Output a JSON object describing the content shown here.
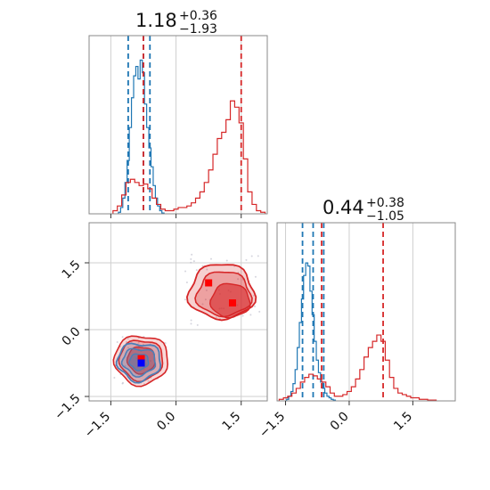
{
  "colors": {
    "blue": "#1f77b4",
    "red": "#d62728",
    "blue_fill": "#4a7fb8",
    "red_fill": "#d62728",
    "grid": "#cfcfcf",
    "scatter": "#b9b9c8",
    "truth_point_a": "#0000ff",
    "truth_point_b": "#ff0000"
  },
  "titles": {
    "param1": {
      "median": "1.18",
      "plus": "+0.36",
      "minus": "−1.93"
    },
    "param2": {
      "median": "0.44",
      "plus": "+0.38",
      "minus": "−1.05"
    }
  },
  "axes": {
    "x1_range": [
      -2.0,
      2.1
    ],
    "x2_range": [
      -1.7,
      2.5
    ],
    "x1_ticks": [
      {
        "value": -1.5,
        "label": "−1.5"
      },
      {
        "value": 0.0,
        "label": "0.0"
      },
      {
        "value": 1.5,
        "label": "1.5"
      }
    ],
    "x2_ticks": [
      {
        "value": -1.5,
        "label": "−1.5"
      },
      {
        "value": 0.0,
        "label": "0.0"
      },
      {
        "value": 1.5,
        "label": "1.5"
      }
    ],
    "y2_range": [
      -1.6,
      2.4
    ],
    "y2_ticks": [
      {
        "value": -1.5,
        "label": "−1.5"
      },
      {
        "value": 0.0,
        "label": "0.0"
      },
      {
        "value": 1.5,
        "label": "1.5"
      }
    ],
    "grid": true
  },
  "chart_data": {
    "type": "corner",
    "series": [
      {
        "name": "",
        "color": "#1f77b4",
        "param1": {
          "x": [
            -1.3,
            -1.25,
            -1.2,
            -1.15,
            -1.1,
            -1.05,
            -1.0,
            -0.95,
            -0.9,
            -0.85,
            -0.8,
            -0.75,
            -0.7,
            -0.65,
            -0.6,
            -0.55,
            -0.5,
            -0.45,
            -0.4,
            -0.35,
            -0.3
          ],
          "counts": [
            0.01,
            0.04,
            0.1,
            0.2,
            0.34,
            0.55,
            0.74,
            0.88,
            0.94,
            0.86,
            0.98,
            0.9,
            0.7,
            0.55,
            0.42,
            0.3,
            0.18,
            0.1,
            0.05,
            0.02,
            0.005
          ],
          "quantiles": [
            -1.1,
            -0.75,
            -0.6
          ]
        },
        "param2": {
          "x": [
            -1.45,
            -1.4,
            -1.35,
            -1.3,
            -1.25,
            -1.2,
            -1.15,
            -1.1,
            -1.05,
            -1.0,
            -0.95,
            -0.9,
            -0.85,
            -0.8,
            -0.75,
            -0.7,
            -0.65,
            -0.6,
            -0.55,
            -0.5,
            -0.45,
            -0.4,
            -0.35
          ],
          "counts": [
            0.01,
            0.03,
            0.06,
            0.11,
            0.2,
            0.34,
            0.5,
            0.65,
            0.8,
            0.88,
            0.86,
            0.7,
            0.55,
            0.38,
            0.26,
            0.18,
            0.12,
            0.08,
            0.05,
            0.03,
            0.02,
            0.01,
            0.005
          ],
          "quantiles": [
            -1.1,
            -0.85,
            -0.6
          ]
        },
        "mode_2d": {
          "x": -0.8,
          "y": -0.75
        }
      },
      {
        "name": "",
        "color": "#d62728",
        "param1": {
          "x": [
            -1.4,
            -1.3,
            -1.2,
            -1.1,
            -1.0,
            -0.9,
            -0.8,
            -0.7,
            -0.6,
            -0.5,
            -0.4,
            -0.3,
            -0.2,
            -0.1,
            0.0,
            0.1,
            0.2,
            0.3,
            0.4,
            0.5,
            0.6,
            0.7,
            0.8,
            0.9,
            1.0,
            1.1,
            1.2,
            1.3,
            1.4,
            1.5,
            1.6,
            1.7,
            1.8,
            1.9,
            2.0
          ],
          "counts": [
            0.02,
            0.05,
            0.12,
            0.2,
            0.22,
            0.2,
            0.18,
            0.19,
            0.16,
            0.1,
            0.06,
            0.03,
            0.02,
            0.02,
            0.03,
            0.04,
            0.04,
            0.05,
            0.07,
            0.1,
            0.14,
            0.2,
            0.28,
            0.38,
            0.48,
            0.52,
            0.6,
            0.72,
            0.68,
            0.58,
            0.35,
            0.14,
            0.06,
            0.02,
            0.01
          ],
          "quantiles": [
            -0.75,
            1.5
          ]
        },
        "param2": {
          "x": [
            -1.6,
            -1.5,
            -1.4,
            -1.3,
            -1.2,
            -1.1,
            -1.0,
            -0.9,
            -0.8,
            -0.7,
            -0.6,
            -0.5,
            -0.4,
            -0.3,
            -0.2,
            -0.1,
            0.0,
            0.1,
            0.2,
            0.3,
            0.4,
            0.5,
            0.6,
            0.7,
            0.8,
            0.9,
            1.0,
            1.1,
            1.2,
            1.3,
            1.4,
            1.5,
            1.6,
            1.7,
            1.8,
            1.9,
            2.0
          ],
          "counts": [
            0.01,
            0.02,
            0.03,
            0.05,
            0.08,
            0.12,
            0.15,
            0.17,
            0.16,
            0.14,
            0.12,
            0.09,
            0.05,
            0.03,
            0.03,
            0.04,
            0.06,
            0.09,
            0.14,
            0.2,
            0.28,
            0.34,
            0.38,
            0.42,
            0.38,
            0.26,
            0.15,
            0.08,
            0.05,
            0.04,
            0.03,
            0.02,
            0.02,
            0.01,
            0.01,
            0.005,
            0.005
          ],
          "quantiles": [
            -0.65,
            0.8
          ]
        },
        "mode_2d_a": {
          "x": -0.8,
          "y": -0.65
        },
        "mode_2d_b": {
          "x": 0.75,
          "y": 1.05
        },
        "mode_2d_c": {
          "x": 1.3,
          "y": 0.6
        }
      }
    ]
  }
}
